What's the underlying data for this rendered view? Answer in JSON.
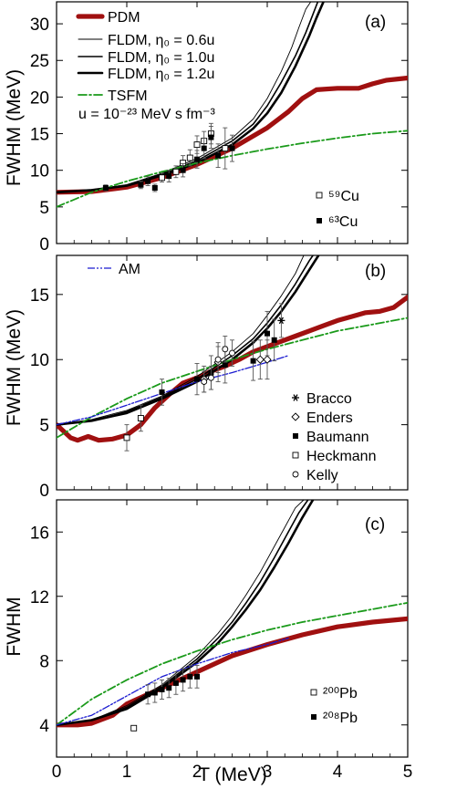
{
  "chart_data": [
    {
      "type": "line",
      "panel_label": "(a)",
      "ylabel": "FWHM  (MeV)",
      "xlim": [
        0,
        5
      ],
      "ylim": [
        0,
        33
      ],
      "yticks": [
        0,
        5,
        10,
        15,
        20,
        25,
        30
      ],
      "legend": {
        "pdm": "PDM",
        "fldm_06": "FLDM, η₀ = 0.6u",
        "fldm_10": "FLDM, η₀ = 1.0u",
        "fldm_12": "FLDM, η₀ = 1.2u",
        "tsfm": "TSFM",
        "unit_note": "u = 10⁻²³ MeV s fm⁻³"
      },
      "data_legend": [
        "⁵⁹Cu",
        "⁶³Cu"
      ],
      "series": [
        {
          "name": "PDM",
          "color": "#a01010",
          "style": "thick",
          "x": [
            0,
            0.5,
            1.0,
            1.5,
            2.0,
            2.5,
            3.0,
            3.3,
            3.5,
            3.7,
            4.0,
            4.3,
            4.5,
            4.7,
            5.0
          ],
          "y": [
            7.0,
            7.1,
            7.7,
            9.0,
            10.8,
            13.0,
            15.8,
            18.0,
            19.8,
            21.0,
            21.2,
            21.2,
            21.8,
            22.3,
            22.6
          ]
        },
        {
          "name": "FLDM, η₀ = 0.6u",
          "color": "#000000",
          "style": "thin",
          "x": [
            0,
            0.5,
            1.0,
            1.5,
            2.0,
            2.5,
            2.8,
            3.0,
            3.2,
            3.35,
            3.45,
            3.55,
            3.62
          ],
          "y": [
            7.0,
            7.3,
            8.0,
            9.6,
            11.6,
            14.4,
            17.0,
            19.8,
            23.5,
            26.8,
            29.5,
            32.0,
            33.0
          ]
        },
        {
          "name": "FLDM, η₀ = 1.0u",
          "color": "#000000",
          "style": "medium",
          "x": [
            0,
            0.5,
            1.0,
            1.5,
            2.0,
            2.5,
            2.8,
            3.0,
            3.2,
            3.4,
            3.55,
            3.65,
            3.72
          ],
          "y": [
            7.0,
            7.3,
            8.0,
            9.5,
            11.3,
            14.0,
            16.3,
            18.8,
            22.0,
            25.6,
            28.8,
            31.3,
            33.0
          ]
        },
        {
          "name": "FLDM, η₀ = 1.2u",
          "color": "#000000",
          "style": "bold",
          "x": [
            0,
            0.5,
            1.0,
            1.5,
            2.0,
            2.5,
            2.8,
            3.0,
            3.2,
            3.4,
            3.6,
            3.7,
            3.8
          ],
          "y": [
            7.0,
            7.3,
            7.9,
            9.3,
            11.0,
            13.5,
            15.7,
            17.8,
            20.6,
            24.2,
            28.4,
            30.8,
            33.0
          ]
        },
        {
          "name": "TSFM",
          "color": "#1a9a1a",
          "style": "dashdot",
          "x": [
            0,
            0.5,
            1.0,
            1.5,
            2.0,
            2.5,
            3.0,
            3.5,
            4.0,
            4.5,
            5.0
          ],
          "y": [
            5.0,
            7.0,
            8.5,
            9.8,
            11.0,
            12.0,
            12.9,
            13.7,
            14.4,
            15.0,
            15.4
          ]
        }
      ],
      "points": [
        {
          "set": "⁵⁹Cu",
          "marker": "open-square",
          "x": [
            1.5,
            1.7,
            1.8,
            1.9,
            2.0,
            2.1,
            2.2,
            2.4
          ],
          "y": [
            9.0,
            9.8,
            11.0,
            11.7,
            13.5,
            14.0,
            15.0,
            13.0
          ],
          "err": [
            0.6,
            0.8,
            1.0,
            1.1,
            1.2,
            1.3,
            1.4,
            2.8
          ]
        },
        {
          "set": "⁶³Cu",
          "marker": "filled-square",
          "x": [
            0.7,
            1.2,
            1.3,
            1.4,
            1.6,
            1.8,
            2.0,
            2.1,
            2.2,
            2.3,
            2.5
          ],
          "y": [
            7.6,
            8.0,
            8.5,
            7.6,
            9.2,
            10.0,
            11.5,
            13.0,
            14.5,
            12.0,
            13.0
          ],
          "err": [
            0.4,
            0.5,
            0.6,
            0.5,
            0.8,
            0.9,
            1.2,
            1.4,
            1.5,
            1.6,
            1.8
          ]
        }
      ]
    },
    {
      "type": "line",
      "panel_label": "(b)",
      "ylabel": "FWHM  (MeV)",
      "xlim": [
        0,
        5
      ],
      "ylim": [
        0,
        18
      ],
      "yticks": [
        0,
        5,
        10,
        15
      ],
      "legend": {
        "am": "AM"
      },
      "data_legend": [
        "Bracco",
        "Enders",
        "Baumann",
        "Heckmann",
        "Kelly"
      ],
      "series": [
        {
          "name": "PDM",
          "color": "#a01010",
          "style": "thick",
          "x": [
            0,
            0.2,
            0.3,
            0.45,
            0.6,
            0.8,
            1.0,
            1.2,
            1.4,
            1.6,
            1.8,
            2.0,
            2.2,
            2.4,
            2.6,
            2.8,
            3.0,
            3.2,
            3.4,
            3.6,
            3.8,
            4.0,
            4.2,
            4.4,
            4.6,
            4.8,
            5.0
          ],
          "y": [
            5.0,
            4.0,
            3.8,
            4.1,
            3.8,
            3.9,
            4.2,
            5.0,
            6.3,
            7.3,
            8.2,
            8.6,
            9.1,
            9.5,
            10.0,
            10.6,
            11.0,
            11.4,
            11.8,
            12.2,
            12.6,
            13.0,
            13.3,
            13.6,
            13.7,
            14.0,
            14.8
          ]
        },
        {
          "name": "FLDM, η₀ = 0.6u",
          "color": "#000000",
          "style": "thin",
          "x": [
            0,
            0.5,
            1.0,
            1.5,
            2.0,
            2.5,
            2.8,
            3.0,
            3.2,
            3.4,
            3.52
          ],
          "y": [
            5.0,
            5.4,
            6.1,
            7.2,
            8.7,
            10.6,
            12.0,
            13.4,
            14.9,
            16.6,
            18.0
          ]
        },
        {
          "name": "FLDM, η₀ = 1.0u",
          "color": "#000000",
          "style": "medium",
          "x": [
            0,
            0.5,
            1.0,
            1.5,
            2.0,
            2.5,
            2.8,
            3.0,
            3.2,
            3.4,
            3.6,
            3.65
          ],
          "y": [
            5.0,
            5.3,
            6.0,
            7.1,
            8.5,
            10.3,
            11.6,
            12.8,
            14.2,
            15.8,
            17.6,
            18.0
          ]
        },
        {
          "name": "FLDM, η₀ = 1.2u",
          "color": "#000000",
          "style": "bold",
          "x": [
            0,
            0.5,
            1.0,
            1.5,
            2.0,
            2.5,
            2.8,
            3.0,
            3.2,
            3.4,
            3.6,
            3.73
          ],
          "y": [
            5.0,
            5.3,
            5.9,
            7.0,
            8.3,
            10.0,
            11.3,
            12.4,
            13.7,
            15.2,
            16.9,
            18.0
          ]
        },
        {
          "name": "TSFM",
          "color": "#1a9a1a",
          "style": "dashdot",
          "x": [
            0,
            0.5,
            1.0,
            1.5,
            2.0,
            2.5,
            3.0,
            3.5,
            4.0,
            4.5,
            5.0
          ],
          "y": [
            4.0,
            5.6,
            7.0,
            8.2,
            9.1,
            10.0,
            10.8,
            11.5,
            12.2,
            12.7,
            13.2
          ]
        },
        {
          "name": "AM",
          "color": "#1a1ad0",
          "style": "dashdotdot",
          "x": [
            0,
            0.5,
            1.0,
            1.5,
            2.0,
            2.5,
            3.0,
            3.3
          ],
          "y": [
            5.0,
            5.6,
            6.5,
            7.4,
            8.3,
            9.0,
            9.8,
            10.3
          ]
        }
      ],
      "points": [
        {
          "set": "Bracco",
          "marker": "star",
          "x": [
            3.2
          ],
          "y": [
            13.0
          ],
          "err": [
            1.3
          ]
        },
        {
          "set": "Enders",
          "marker": "open-diamond",
          "x": [
            2.1,
            2.3,
            2.9,
            3.0
          ],
          "y": [
            8.5,
            9.8,
            10.0,
            10.0
          ],
          "err": [
            1.0,
            1.5,
            1.5,
            1.5
          ]
        },
        {
          "set": "Baumann",
          "marker": "filled-square",
          "x": [
            1.5,
            2.0,
            2.2,
            2.4,
            2.8,
            3.0,
            3.1
          ],
          "y": [
            7.5,
            8.5,
            9.0,
            9.6,
            9.9,
            12.0,
            11.5
          ],
          "err": [
            1.0,
            1.2,
            1.3,
            1.4,
            1.5,
            1.7,
            1.6
          ]
        },
        {
          "set": "Heckmann",
          "marker": "open-square",
          "x": [
            1.0,
            1.2
          ],
          "y": [
            4.0,
            5.5
          ],
          "err": [
            1.0,
            1.0
          ]
        },
        {
          "set": "Kelly",
          "marker": "open-circle",
          "x": [
            2.1,
            2.2,
            2.3,
            2.4,
            2.5
          ],
          "y": [
            8.3,
            8.6,
            10.0,
            10.8,
            10.5
          ],
          "err": [
            0.8,
            0.9,
            1.0,
            1.0,
            1.0
          ]
        }
      ]
    },
    {
      "type": "line",
      "panel_label": "(c)",
      "ylabel": "FWHM",
      "xlabel": "T  (MeV)",
      "xlim": [
        0,
        5
      ],
      "xticks": [
        0,
        1,
        2,
        3,
        4,
        5
      ],
      "ylim": [
        2,
        18
      ],
      "yticks": [
        4,
        8,
        12,
        16
      ],
      "data_legend": [
        "²⁰⁰Pb",
        "²⁰⁸Pb"
      ],
      "series": [
        {
          "name": "PDM",
          "color": "#a01010",
          "style": "thick",
          "x": [
            0,
            0.3,
            0.5,
            0.8,
            1.0,
            1.5,
            2.0,
            2.5,
            3.0,
            3.5,
            4.0,
            4.5,
            5.0
          ],
          "y": [
            4.0,
            4.0,
            4.1,
            4.6,
            5.3,
            6.3,
            7.3,
            8.3,
            9.0,
            9.6,
            10.1,
            10.4,
            10.6
          ]
        },
        {
          "name": "FLDM, η₀ = 0.6u",
          "color": "#000000",
          "style": "thin",
          "x": [
            0,
            0.5,
            1.0,
            1.5,
            2.0,
            2.3,
            2.5,
            2.7,
            2.9,
            3.1,
            3.25,
            3.4,
            3.52
          ],
          "y": [
            4.0,
            4.3,
            5.2,
            6.5,
            8.3,
            9.7,
            10.8,
            12.1,
            13.5,
            15.1,
            16.3,
            17.5,
            18.0
          ]
        },
        {
          "name": "FLDM, η₀ = 1.0u",
          "color": "#000000",
          "style": "medium",
          "x": [
            0,
            0.5,
            1.0,
            1.5,
            2.0,
            2.3,
            2.5,
            2.7,
            2.9,
            3.1,
            3.3,
            3.45,
            3.58
          ],
          "y": [
            4.0,
            4.3,
            5.1,
            6.4,
            8.1,
            9.4,
            10.4,
            11.6,
            12.9,
            14.4,
            16.0,
            17.2,
            18.0
          ]
        },
        {
          "name": "FLDM, η₀ = 1.2u",
          "color": "#000000",
          "style": "bold",
          "x": [
            0,
            0.5,
            1.0,
            1.5,
            2.0,
            2.3,
            2.5,
            2.7,
            2.9,
            3.1,
            3.3,
            3.5,
            3.65
          ],
          "y": [
            4.0,
            4.3,
            5.0,
            6.3,
            7.9,
            9.1,
            10.1,
            11.2,
            12.4,
            13.8,
            15.3,
            16.9,
            18.0
          ]
        },
        {
          "name": "TSFM",
          "color": "#1a9a1a",
          "style": "dashdot",
          "x": [
            0,
            0.5,
            1.0,
            1.5,
            2.0,
            2.5,
            3.0,
            3.5,
            4.0,
            4.5,
            5.0
          ],
          "y": [
            4.0,
            5.6,
            6.8,
            7.8,
            8.6,
            9.3,
            9.9,
            10.4,
            10.8,
            11.2,
            11.6
          ]
        },
        {
          "name": "AM",
          "color": "#1a1ad0",
          "style": "dashdotdot",
          "x": [
            0,
            0.5,
            1.0,
            1.5,
            2.0,
            2.5,
            3.0,
            3.3
          ],
          "y": [
            4.0,
            4.6,
            5.8,
            7.0,
            7.8,
            8.5,
            9.0,
            9.4
          ]
        }
      ],
      "points": [
        {
          "set": "²⁰⁰Pb",
          "marker": "open-square",
          "x": [
            1.1
          ],
          "y": [
            3.8
          ],
          "err": [
            0
          ]
        },
        {
          "set": "²⁰⁸Pb",
          "marker": "filled-square",
          "x": [
            1.3,
            1.4,
            1.5,
            1.6,
            1.7,
            1.8,
            1.9,
            2.0
          ],
          "y": [
            5.9,
            6.0,
            6.2,
            6.3,
            6.6,
            6.8,
            7.0,
            7.0
          ],
          "err": [
            0.6,
            0.6,
            0.6,
            0.6,
            0.7,
            0.7,
            0.7,
            0.7
          ]
        }
      ]
    }
  ]
}
